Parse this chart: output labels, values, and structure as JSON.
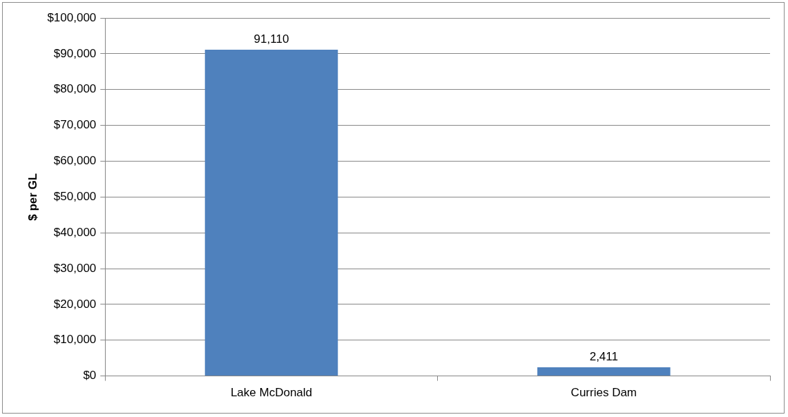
{
  "chart_data": {
    "type": "bar",
    "ylabel": "$ per GL",
    "categories": [
      "Lake McDonald",
      "Curries Dam"
    ],
    "values": [
      91110,
      2411
    ],
    "value_labels": [
      "91,110",
      "2,411"
    ],
    "color": "#4f81bd",
    "ylim": [
      0,
      100000
    ],
    "yticks": [
      {
        "value": 0,
        "label": "$0"
      },
      {
        "value": 10000,
        "label": "$10,000"
      },
      {
        "value": 20000,
        "label": "$20,000"
      },
      {
        "value": 30000,
        "label": "$30,000"
      },
      {
        "value": 40000,
        "label": "$40,000"
      },
      {
        "value": 50000,
        "label": "$50,000"
      },
      {
        "value": 60000,
        "label": "$60,000"
      },
      {
        "value": 70000,
        "label": "$70,000"
      },
      {
        "value": 80000,
        "label": "$80,000"
      },
      {
        "value": 90000,
        "label": "$90,000"
      },
      {
        "value": 100000,
        "label": "$100,000"
      }
    ],
    "grid": "y"
  }
}
